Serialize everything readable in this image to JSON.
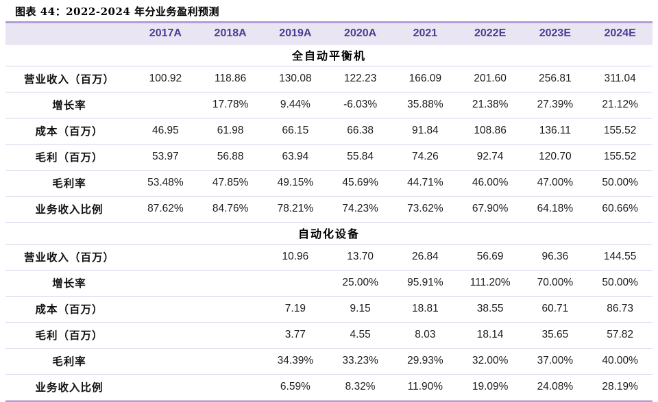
{
  "title": "图表 44：2022-2024 年分业务盈利预测",
  "colors": {
    "header_bg": "#e9e5f3",
    "header_text": "#4c3b92",
    "row_divider": "#d9cdeb",
    "top_rule": "#b29dd8",
    "bottom_rule": "#b29dd8",
    "body_text": "#1b1b1b",
    "title_text": "#000000"
  },
  "chart_data": {
    "type": "table",
    "title": "图表 44：2022-2024 年分业务盈利预测",
    "columns": [
      "",
      "2017A",
      "2018A",
      "2019A",
      "2020A",
      "2021",
      "2022E",
      "2023E",
      "2024E"
    ],
    "sections": [
      {
        "name": "全自动平衡机",
        "rows": [
          {
            "label": "营业收入（百万）",
            "values": [
              "100.92",
              "118.86",
              "130.08",
              "122.23",
              "166.09",
              "201.60",
              "256.81",
              "311.04"
            ]
          },
          {
            "label": "增长率",
            "values": [
              "",
              "17.78%",
              "9.44%",
              "-6.03%",
              "35.88%",
              "21.38%",
              "27.39%",
              "21.12%"
            ]
          },
          {
            "label": "成本（百万）",
            "values": [
              "46.95",
              "61.98",
              "66.15",
              "66.38",
              "91.84",
              "108.86",
              "136.11",
              "155.52"
            ]
          },
          {
            "label": "毛利（百万）",
            "values": [
              "53.97",
              "56.88",
              "63.94",
              "55.84",
              "74.26",
              "92.74",
              "120.70",
              "155.52"
            ]
          },
          {
            "label": "毛利率",
            "values": [
              "53.48%",
              "47.85%",
              "49.15%",
              "45.69%",
              "44.71%",
              "46.00%",
              "47.00%",
              "50.00%"
            ]
          },
          {
            "label": "业务收入比例",
            "values": [
              "87.62%",
              "84.76%",
              "78.21%",
              "74.23%",
              "73.62%",
              "67.90%",
              "64.18%",
              "60.66%"
            ]
          }
        ]
      },
      {
        "name": "自动化设备",
        "rows": [
          {
            "label": "营业收入（百万）",
            "values": [
              "",
              "",
              "10.96",
              "13.70",
              "26.84",
              "56.69",
              "96.36",
              "144.55"
            ]
          },
          {
            "label": "增长率",
            "values": [
              "",
              "",
              "",
              "25.00%",
              "95.91%",
              "111.20%",
              "70.00%",
              "50.00%"
            ]
          },
          {
            "label": "成本（百万）",
            "values": [
              "",
              "",
              "7.19",
              "9.15",
              "18.81",
              "38.55",
              "60.71",
              "86.73"
            ]
          },
          {
            "label": "毛利（百万）",
            "values": [
              "",
              "",
              "3.77",
              "4.55",
              "8.03",
              "18.14",
              "35.65",
              "57.82"
            ]
          },
          {
            "label": "毛利率",
            "values": [
              "",
              "",
              "34.39%",
              "33.23%",
              "29.93%",
              "32.00%",
              "37.00%",
              "40.00%"
            ]
          },
          {
            "label": "业务收入比例",
            "values": [
              "",
              "",
              "6.59%",
              "8.32%",
              "11.90%",
              "19.09%",
              "24.08%",
              "28.19%"
            ]
          }
        ]
      }
    ]
  }
}
